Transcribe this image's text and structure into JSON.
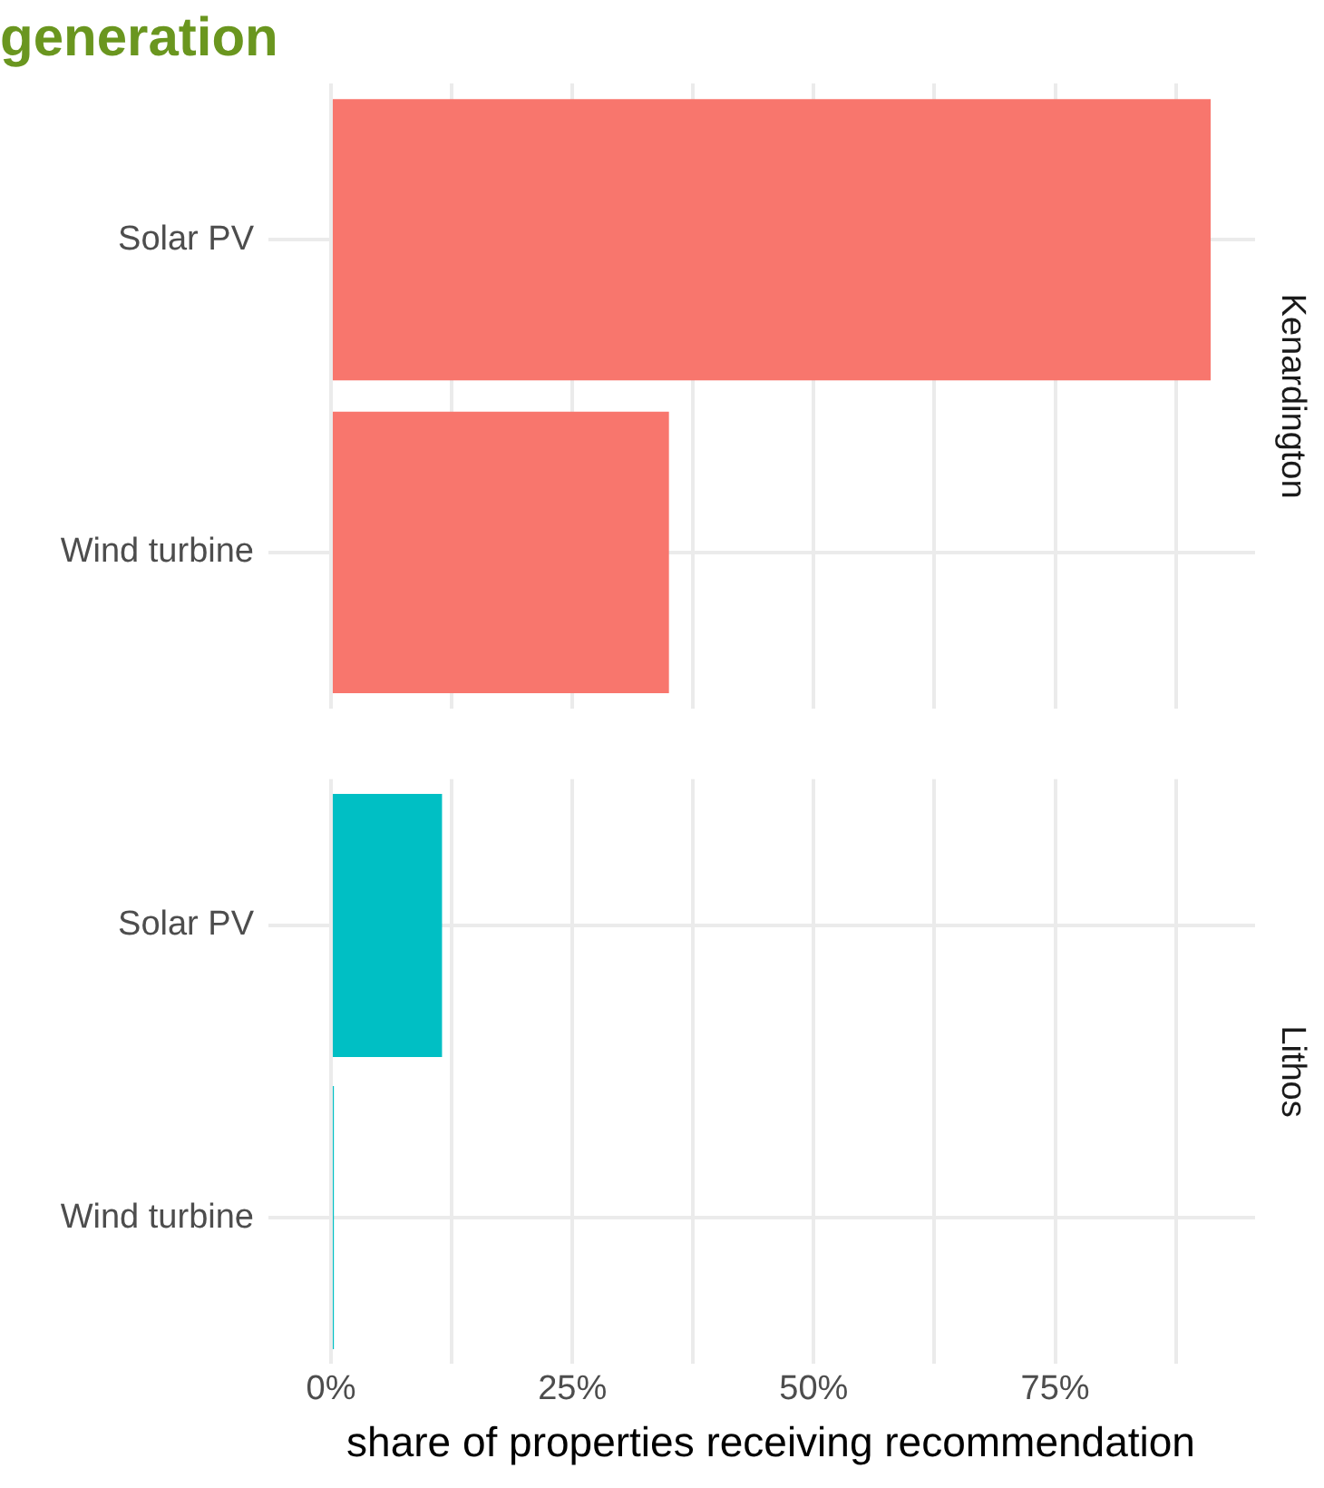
{
  "chart_data": [
    {
      "type": "bar",
      "orientation": "horizontal",
      "title": "generation",
      "annotations": [
        "Kenardington"
      ],
      "categories": [
        "Solar PV",
        "Wind turbine"
      ],
      "values": [
        91.1,
        35.0
      ],
      "color": "#f8766d",
      "xlim": [
        -4.6,
        95.7
      ],
      "xticks": [
        {
          "value": 0,
          "label": null
        },
        {
          "value": 12.5,
          "label": null
        },
        {
          "value": 25,
          "label": null
        },
        {
          "value": 37.5,
          "label": null
        },
        {
          "value": 50,
          "label": null
        },
        {
          "value": 62.5,
          "label": null
        },
        {
          "value": 75,
          "label": null
        },
        {
          "value": 87.5,
          "label": null
        }
      ],
      "grid": true,
      "tick_labels": "y"
    },
    {
      "type": "bar",
      "orientation": "horizontal",
      "xlabel": "share of properties receiving recommendation",
      "annotations": [
        "Lithos"
      ],
      "categories": [
        "Solar PV",
        "Wind turbine"
      ],
      "values": [
        11.5,
        0.3
      ],
      "color": "#00bfc4",
      "xlim": [
        -4.6,
        95.7
      ],
      "xticks": [
        {
          "value": 0,
          "label": "0%"
        },
        {
          "value": 12.5,
          "label": null
        },
        {
          "value": 25,
          "label": "25%"
        },
        {
          "value": 37.5,
          "label": null
        },
        {
          "value": 50,
          "label": "50%"
        },
        {
          "value": 62.5,
          "label": null
        },
        {
          "value": 75,
          "label": "75%"
        },
        {
          "value": 87.5,
          "label": null
        }
      ],
      "grid": true
    }
  ]
}
